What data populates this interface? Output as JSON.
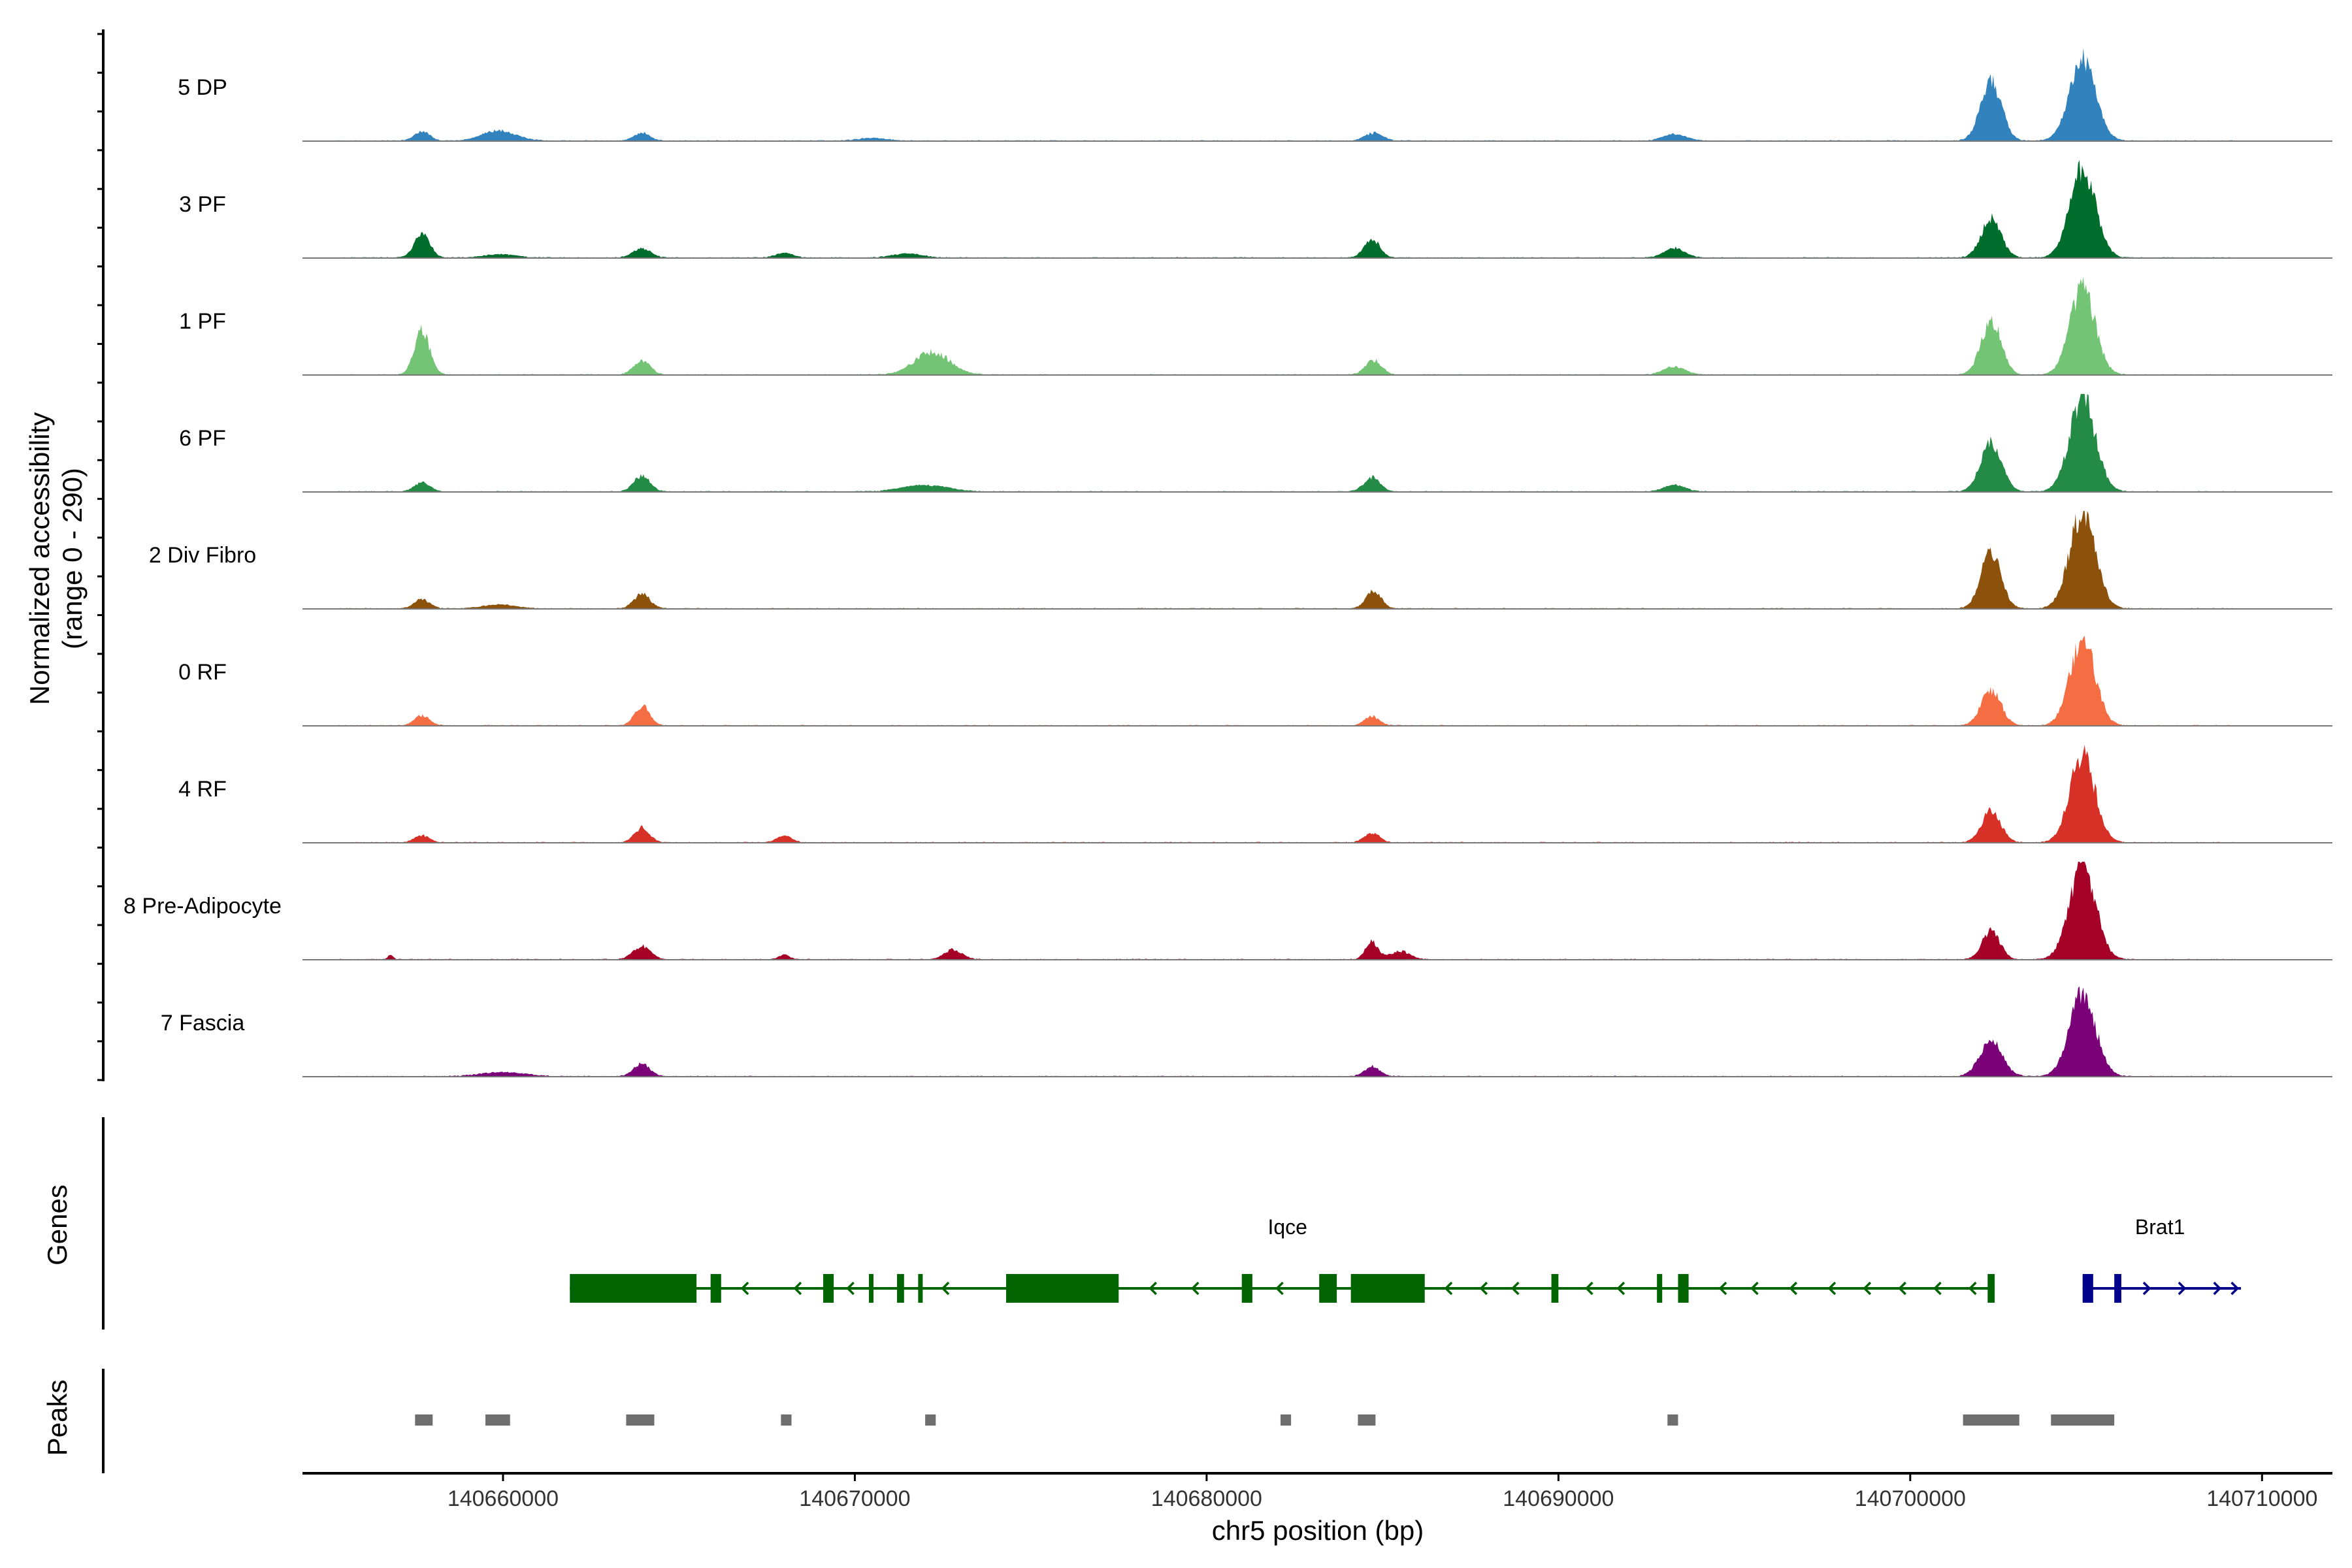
{
  "chart_data": {
    "type": "coverage",
    "ylabel_line1": "Normalized accessibility",
    "ylabel_line2": "(range 0 - 290)",
    "xlabel": "chr5 position (bp)",
    "xlim": [
      140654300,
      140712000
    ],
    "ylim": [
      0,
      290
    ],
    "x_ticks": [
      140660000,
      140670000,
      140680000,
      140690000,
      140700000,
      140710000
    ],
    "x_tick_labels": [
      "140660000",
      "140670000",
      "140680000",
      "140690000",
      "140700000",
      "140710000"
    ],
    "tracks": [
      {
        "name": "5 DP",
        "color": "#3182BD",
        "peaks": [
          [
            140657700,
            30,
            300
          ],
          [
            140659900,
            32,
            650
          ],
          [
            140663950,
            26,
            300
          ],
          [
            140670500,
            8,
            600
          ],
          [
            140684750,
            24,
            350
          ],
          [
            140693300,
            20,
            450
          ],
          [
            140702300,
            180,
            420
          ],
          [
            140704900,
            255,
            520
          ]
        ]
      },
      {
        "name": "3 PF",
        "color": "#006D2C",
        "peaks": [
          [
            140657700,
            80,
            300
          ],
          [
            140659900,
            10,
            650
          ],
          [
            140663950,
            30,
            350
          ],
          [
            140668000,
            14,
            350
          ],
          [
            140671500,
            12,
            600
          ],
          [
            140684700,
            60,
            300
          ],
          [
            140693300,
            30,
            400
          ],
          [
            140702300,
            120,
            400
          ],
          [
            140704900,
            280,
            520
          ]
        ]
      },
      {
        "name": "1 PF",
        "color": "#74C476",
        "peaks": [
          [
            140657700,
            140,
            300
          ],
          [
            140663950,
            45,
            320
          ],
          [
            140672200,
            70,
            700
          ],
          [
            140684750,
            45,
            320
          ],
          [
            140693300,
            25,
            420
          ],
          [
            140702300,
            170,
            400
          ],
          [
            140704900,
            270,
            500
          ]
        ]
      },
      {
        "name": "6 PF",
        "color": "#238B45",
        "peaks": [
          [
            140657700,
            30,
            300
          ],
          [
            140663950,
            50,
            320
          ],
          [
            140672000,
            20,
            900
          ],
          [
            140684700,
            45,
            320
          ],
          [
            140693300,
            20,
            420
          ],
          [
            140702300,
            150,
            420
          ],
          [
            140704900,
            290,
            520
          ]
        ]
      },
      {
        "name": "2 Div Fibro",
        "color": "#8C510A",
        "peaks": [
          [
            140657700,
            30,
            300
          ],
          [
            140659900,
            12,
            650
          ],
          [
            140663950,
            45,
            320
          ],
          [
            140684750,
            55,
            300
          ],
          [
            140702300,
            175,
            400
          ],
          [
            140704900,
            300,
            520
          ]
        ]
      },
      {
        "name": "0 RF",
        "color": "#F46D43",
        "peaks": [
          [
            140657700,
            30,
            300
          ],
          [
            140663950,
            60,
            300
          ],
          [
            140684700,
            28,
            300
          ],
          [
            140702300,
            110,
            400
          ],
          [
            140704900,
            270,
            500
          ]
        ]
      },
      {
        "name": "4 RF",
        "color": "#D73027",
        "peaks": [
          [
            140657700,
            22,
            300
          ],
          [
            140663950,
            45,
            300
          ],
          [
            140668000,
            20,
            300
          ],
          [
            140684700,
            30,
            300
          ],
          [
            140702300,
            100,
            380
          ],
          [
            140704900,
            275,
            500
          ]
        ]
      },
      {
        "name": "8 Pre-Adipocyte",
        "color": "#A50026",
        "peaks": [
          [
            140656800,
            14,
            100
          ],
          [
            140663950,
            40,
            350
          ],
          [
            140668000,
            14,
            200
          ],
          [
            140672800,
            30,
            350
          ],
          [
            140684700,
            55,
            250
          ],
          [
            140685500,
            25,
            400
          ],
          [
            140702300,
            90,
            350
          ],
          [
            140704900,
            300,
            520
          ]
        ]
      },
      {
        "name": "7 Fascia",
        "color": "#7A0177",
        "peaks": [
          [
            140660000,
            12,
            900
          ],
          [
            140663950,
            40,
            320
          ],
          [
            140684700,
            30,
            300
          ],
          [
            140702300,
            110,
            450
          ],
          [
            140704900,
            260,
            520
          ]
        ]
      }
    ],
    "genes": [
      {
        "name": "Iqce",
        "strand": "-",
        "color": "#006400",
        "start": 140661900,
        "end": 140702400,
        "label_pos": 140682300,
        "exons": [
          [
            140661900,
            140665500
          ],
          [
            140665900,
            140666200
          ],
          [
            140669100,
            140669400
          ],
          [
            140670400,
            140670500
          ],
          [
            140671200,
            140671400
          ],
          [
            140671800,
            140671900
          ],
          [
            140674300,
            140677500
          ],
          [
            140681000,
            140681300
          ],
          [
            140683200,
            140683700
          ],
          [
            140684100,
            140686200
          ],
          [
            140689800,
            140690000
          ],
          [
            140692800,
            140692950
          ],
          [
            140693400,
            140693700
          ],
          [
            140702200,
            140702400
          ]
        ],
        "introns_ticks": [
          140666800,
          140668300,
          140669800,
          140672500,
          140678400,
          140679600,
          140682000,
          140686800,
          140687800,
          140688700,
          140690800,
          140691700,
          140694600,
          140695500,
          140696600,
          140697700,
          140698700,
          140699700,
          140700700,
          140701700
        ]
      },
      {
        "name": "Brat1",
        "strand": "+",
        "color": "#00008B",
        "start": 140704900,
        "end": 140709400,
        "label_pos": 140707100,
        "exons": [
          [
            140704900,
            140705200
          ],
          [
            140705800,
            140706000
          ]
        ],
        "introns_ticks": [
          140706800,
          140707800,
          140708800,
          140709300
        ]
      }
    ],
    "peak_regions": [
      [
        140657500,
        140658000
      ],
      [
        140659500,
        140660200
      ],
      [
        140663500,
        140664300
      ],
      [
        140667900,
        140668200
      ],
      [
        140672000,
        140672300
      ],
      [
        140682100,
        140682400
      ],
      [
        140684300,
        140684800
      ],
      [
        140693100,
        140693400
      ],
      [
        140701500,
        140703100
      ],
      [
        140704000,
        140705800
      ]
    ],
    "panel_titles": {
      "genes": "Genes",
      "peaks": "Peaks"
    }
  }
}
